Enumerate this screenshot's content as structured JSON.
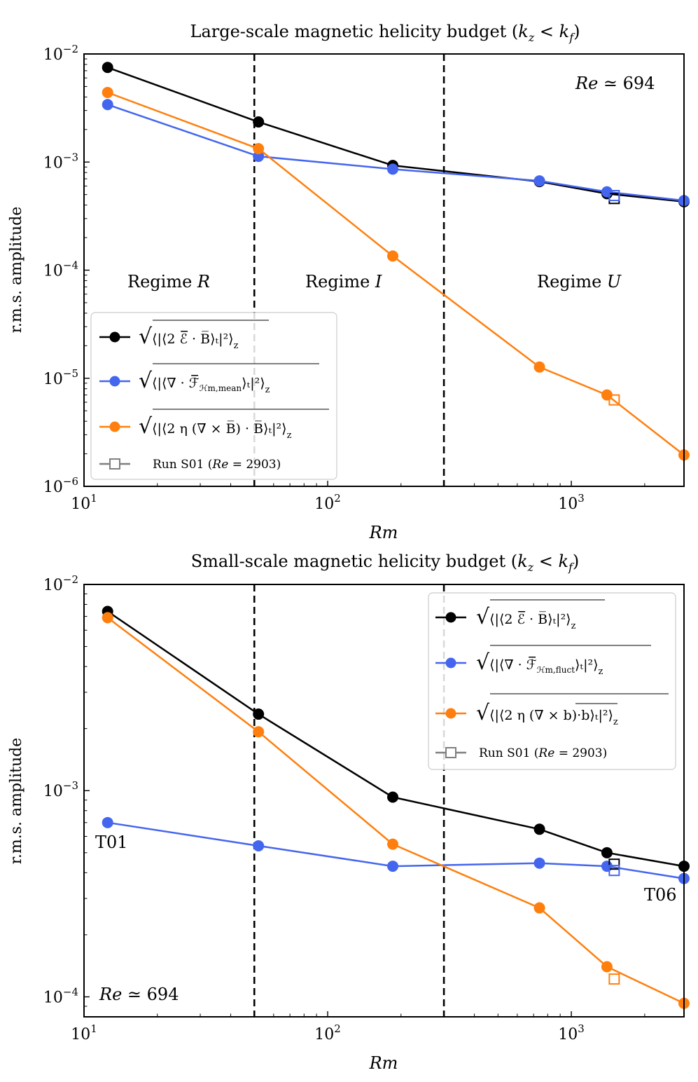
{
  "chart_data": [
    {
      "type": "line",
      "title": "Large-scale magnetic helicity budget (k_z < k_f)",
      "xlabel": "Rm",
      "ylabel": "r.m.s. amplitude",
      "xscale": "log",
      "yscale": "log",
      "xlim": [
        10,
        2900
      ],
      "ylim": [
        1e-06,
        0.01
      ],
      "xtick_labels": [
        "10^1",
        "10^2",
        "10^3"
      ],
      "ytick_labels": [
        "10^-6",
        "10^-5",
        "10^-4",
        "10^-3",
        "10^-2"
      ],
      "regime_boundaries": [
        50,
        300
      ],
      "annotations": [
        {
          "text": "Regime R",
          "x": 20,
          "y": 7e-05
        },
        {
          "text": "Regime I",
          "x": 115,
          "y": 7e-05
        },
        {
          "text": "Regime U",
          "x": 1050,
          "y": 7e-05
        },
        {
          "text": "Re ≃ 694",
          "x": 1750,
          "y": 0.0062
        }
      ],
      "legend_position": "lower-left",
      "x": [
        12.5,
        52,
        185,
        740,
        1400,
        2900
      ],
      "series": [
        {
          "name": "sqrt(<|<2 E·B>_t|^2>_z)",
          "color": "#000000",
          "values": [
            0.0075,
            0.00235,
            0.00093,
            0.00066,
            0.00051,
            0.00043
          ]
        },
        {
          "name": "sqrt(<|<∇·F_Hm,mean>_t|^2>_z)",
          "color": "#4466ee",
          "values": [
            0.0034,
            0.00113,
            0.00086,
            0.00067,
            0.00053,
            0.00044
          ]
        },
        {
          "name": "sqrt(<|<2η(∇×B)·B>_t|^2>_z)",
          "color": "#ff7f0e",
          "values": [
            0.0044,
            0.00133,
            0.000135,
            1.27e-05,
            7e-06,
            1.95e-06
          ]
        }
      ],
      "markers_run_s01": {
        "label": "Run S01 (Re = 2903)",
        "x": 1500,
        "values": [
          0.00046,
          0.00049,
          6.3e-06
        ]
      }
    },
    {
      "type": "line",
      "title": "Small-scale magnetic helicity budget (k_z < k_f)",
      "xlabel": "Rm",
      "ylabel": "r.m.s. amplitude",
      "xscale": "log",
      "yscale": "log",
      "xlim": [
        10,
        2900
      ],
      "ylim": [
        8e-05,
        0.01
      ],
      "xtick_labels": [
        "10^1",
        "10^2",
        "10^3"
      ],
      "ytick_labels": [
        "10^-4",
        "10^-3",
        "10^-2"
      ],
      "regime_boundaries": [
        50,
        300
      ],
      "annotations": [
        {
          "text": "T01",
          "x": 11.5,
          "y": 0.0005
        },
        {
          "text": "T06",
          "x": 2350,
          "y": 0.000255
        },
        {
          "text": "Re ≃ 694",
          "x": 11.5,
          "y": 9.5e-05
        }
      ],
      "legend_position": "upper-right",
      "x": [
        12.5,
        52,
        185,
        740,
        1400,
        2900
      ],
      "series": [
        {
          "name": "sqrt(<|<2 E·B>_t|^2>_z)",
          "color": "#000000",
          "values": [
            0.0074,
            0.00235,
            0.00093,
            0.00065,
            0.0005,
            0.00043
          ]
        },
        {
          "name": "sqrt(<|<∇·F_Hm,fluct>_t|^2>_z)",
          "color": "#4466ee",
          "values": [
            0.0007,
            0.00054,
            0.00043,
            0.000445,
            0.00043,
            0.000375
          ]
        },
        {
          "name": "sqrt(<|<2η overline((∇×b)·b)>_t|^2>_z)",
          "color": "#ff7f0e",
          "values": [
            0.0069,
            0.00193,
            0.00055,
            0.00027,
            0.00014,
            9.3e-05
          ]
        }
      ],
      "markers_run_s01": {
        "label": "Run S01 (Re = 2903)",
        "x": 1500,
        "values": [
          0.00044,
          0.00041,
          0.000122
        ]
      }
    }
  ],
  "labels": {
    "top_title_main": "Large-scale magnetic helicity budget (",
    "bottom_title_main": "Small-scale magnetic helicity budget (",
    "title_k": "k",
    "title_z": "z",
    "title_lt": " < ",
    "title_f": "f",
    "title_close": ")",
    "ylabel": "r.m.s. amplitude",
    "xlabel": "Rm",
    "regime_r": "Regime ",
    "regime_r_letter": "R",
    "regime_i": "Regime ",
    "regime_i_letter": "I",
    "regime_u": "Regime ",
    "regime_u_letter": "U",
    "re_symbol": "Re",
    "re_value": " ≃ 694",
    "t01": "T01",
    "t06": "T06",
    "run_s01_prefix": "Run S01 (",
    "run_s01_re": "Re",
    "run_s01_suffix": " = 2903)",
    "sqrt_sym": "√",
    "leg1_expr": "⟨|⟨2 ℰ̅ · B̅⟩ₜ|²⟩",
    "leg2_top_expr": "⟨|⟨∇ · ℱ̅",
    "leg2_top_sub": "ℋm,mean",
    "leg2_bottom_sub": "ℋm,fluct",
    "leg2_close": "⟩ₜ|²⟩",
    "leg3_top_expr": "⟨|⟨2 η (∇ × B̅) · B̅⟩ₜ|²⟩",
    "leg3_bottom_expr": "⟨|⟨2 η (∇ × b)·b⟩ₜ|²⟩",
    "sub_z": "z"
  },
  "colors": {
    "black": "#000000",
    "blue": "#4466ee",
    "orange": "#ff7f0e",
    "grey": "#7f7f7f"
  }
}
